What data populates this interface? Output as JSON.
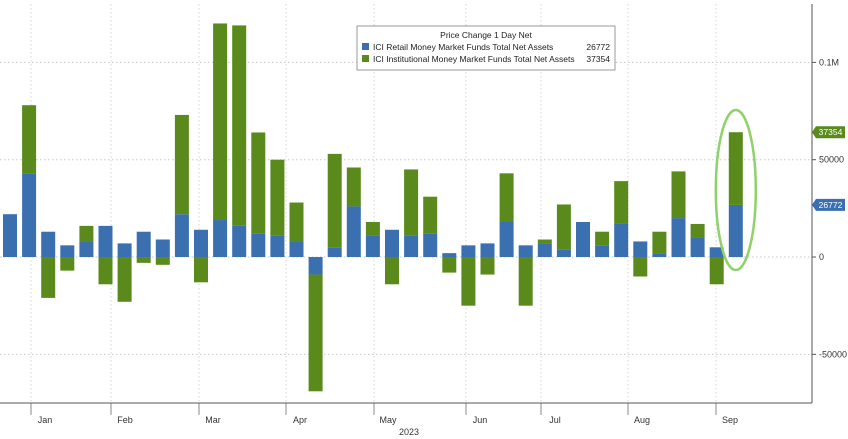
{
  "chart_data": {
    "type": "bar",
    "stacked": true,
    "legend": {
      "title": "Price Change 1 Day Net",
      "placement": "top-center"
    },
    "series": [
      {
        "name": "ICI Retail Money Market Funds Total Net Assets",
        "legend_value": "26772",
        "color": "#3a6fb0",
        "values": [
          22000,
          43000,
          13000,
          6000,
          8000,
          16000,
          7000,
          13000,
          9000,
          22000,
          14000,
          19000,
          16000,
          12000,
          11000,
          8000,
          -9000,
          5000,
          26000,
          11000,
          14000,
          11000,
          12000,
          2000,
          6000,
          7000,
          18000,
          6000,
          7000,
          4000,
          18000,
          6000,
          17000,
          8000,
          2000,
          20000,
          10000,
          5000,
          26772
        ]
      },
      {
        "name": "ICI Institutional Money Market Funds Total Net Assets",
        "legend_value": "37354",
        "color": "#5a8a1b",
        "values": [
          0,
          35000,
          -21000,
          -7000,
          8000,
          -14000,
          -23000,
          -3000,
          -4000,
          51000,
          -13000,
          101000,
          103000,
          52000,
          39000,
          20000,
          -60000,
          48000,
          20000,
          7000,
          -14000,
          34000,
          19000,
          -8000,
          -25000,
          -9000,
          25000,
          -25000,
          2000,
          23000,
          0,
          7000,
          22000,
          -10000,
          11000,
          24000,
          7000,
          -14000,
          37354
        ]
      }
    ],
    "x_axis": {
      "tick_labels": [
        "Jan",
        "Feb",
        "Mar",
        "Apr",
        "May",
        "Jun",
        "Jul",
        "Aug",
        "Sep"
      ],
      "year_label": "2023"
    },
    "y_axis": {
      "side": "right",
      "ylim": [
        -75000,
        130000
      ],
      "ticks": [
        {
          "value": 100000,
          "label": "0.1M"
        },
        {
          "value": 50000,
          "label": "50000"
        },
        {
          "value": 0,
          "label": "0"
        },
        {
          "value": -50000,
          "label": "-50000"
        }
      ]
    },
    "last_value_tags": [
      {
        "label": "37354",
        "value": 64126,
        "color": "#5a8a1b"
      },
      {
        "label": "26772",
        "value": 26772,
        "color": "#3a6fb0"
      }
    ],
    "grid": true,
    "annotation": {
      "type": "ellipse",
      "color": "#8fd16a",
      "highlights": "last-bar"
    }
  }
}
